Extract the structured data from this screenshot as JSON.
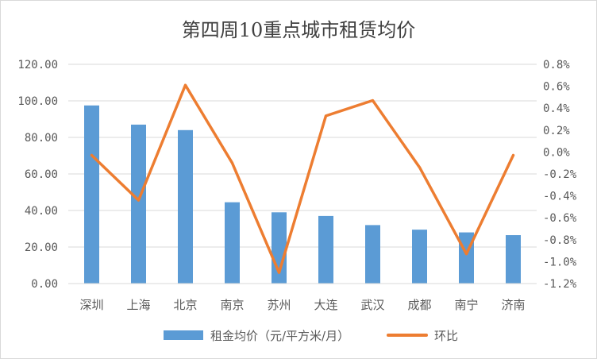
{
  "chart_data": {
    "type": "bar",
    "title": "第四周10重点城市租赁均价",
    "categories": [
      "深圳",
      "上海",
      "北京",
      "南京",
      "苏州",
      "大连",
      "武汉",
      "成都",
      "南宁",
      "济南"
    ],
    "series": [
      {
        "name": "租金均价（元/平方米/月）",
        "type": "bar",
        "axis": "left",
        "color": "#5b9bd5",
        "values": [
          97.5,
          87.0,
          84.0,
          44.5,
          39.0,
          37.0,
          32.0,
          29.5,
          28.0,
          26.5
        ]
      },
      {
        "name": "环比",
        "type": "line",
        "axis": "right",
        "color": "#ed7d31",
        "values": [
          -0.0003,
          -0.0044,
          0.0061,
          -0.001,
          -0.011,
          0.0033,
          0.0047,
          -0.0014,
          -0.0093,
          -0.0003
        ]
      }
    ],
    "left_axis": {
      "ylim": [
        0,
        120
      ],
      "ticks": [
        "0.00",
        "20.00",
        "40.00",
        "60.00",
        "80.00",
        "100.00",
        "120.00"
      ],
      "tick_values": [
        0,
        20,
        40,
        60,
        80,
        100,
        120
      ]
    },
    "right_axis": {
      "ylim": [
        -0.012,
        0.008
      ],
      "ticks": [
        "-1.2%",
        "-1.0%",
        "-0.8%",
        "-0.6%",
        "-0.4%",
        "-0.2%",
        "0.0%",
        "0.2%",
        "0.4%",
        "0.6%",
        "0.8%"
      ],
      "tick_values": [
        -0.012,
        -0.01,
        -0.008,
        -0.006,
        -0.004,
        -0.002,
        0.0,
        0.002,
        0.004,
        0.006,
        0.008
      ]
    },
    "grid": true,
    "legend_position": "bottom"
  }
}
